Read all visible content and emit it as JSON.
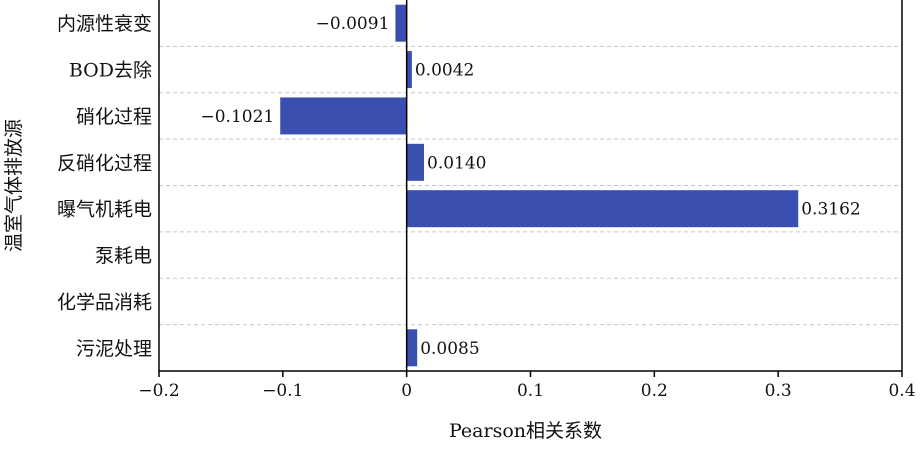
{
  "chart_data": {
    "type": "bar",
    "orientation": "horizontal",
    "categories": [
      "内源性衰变",
      "BOD去除",
      "硝化过程",
      "反硝化过程",
      "曝气机耗电",
      "泵耗电",
      "化学品消耗",
      "污泥处理"
    ],
    "values": [
      -0.0091,
      0.0042,
      -0.1021,
      0.014,
      0.3162,
      0,
      0,
      0.0085
    ],
    "data_labels": [
      "−0.0091",
      "0.0042",
      "−0.1021",
      "0.0140",
      "0.3162",
      "",
      "",
      "0.0085"
    ],
    "xlabel": "Pearson相关系数",
    "ylabel": "温室气体排放源",
    "xlim": [
      -0.2,
      0.4
    ],
    "xticks": [
      -0.2,
      -0.1,
      0,
      0.1,
      0.2,
      0.3,
      0.4
    ],
    "xtick_labels": [
      "−0.2",
      "−0.1",
      "0",
      "0.1",
      "0.2",
      "0.3",
      "0.4"
    ],
    "grid": "horizontal-dashed",
    "colors": {
      "bar": "#3a4fb0",
      "grid": "#c8c8c8",
      "axis": "#000000"
    }
  }
}
